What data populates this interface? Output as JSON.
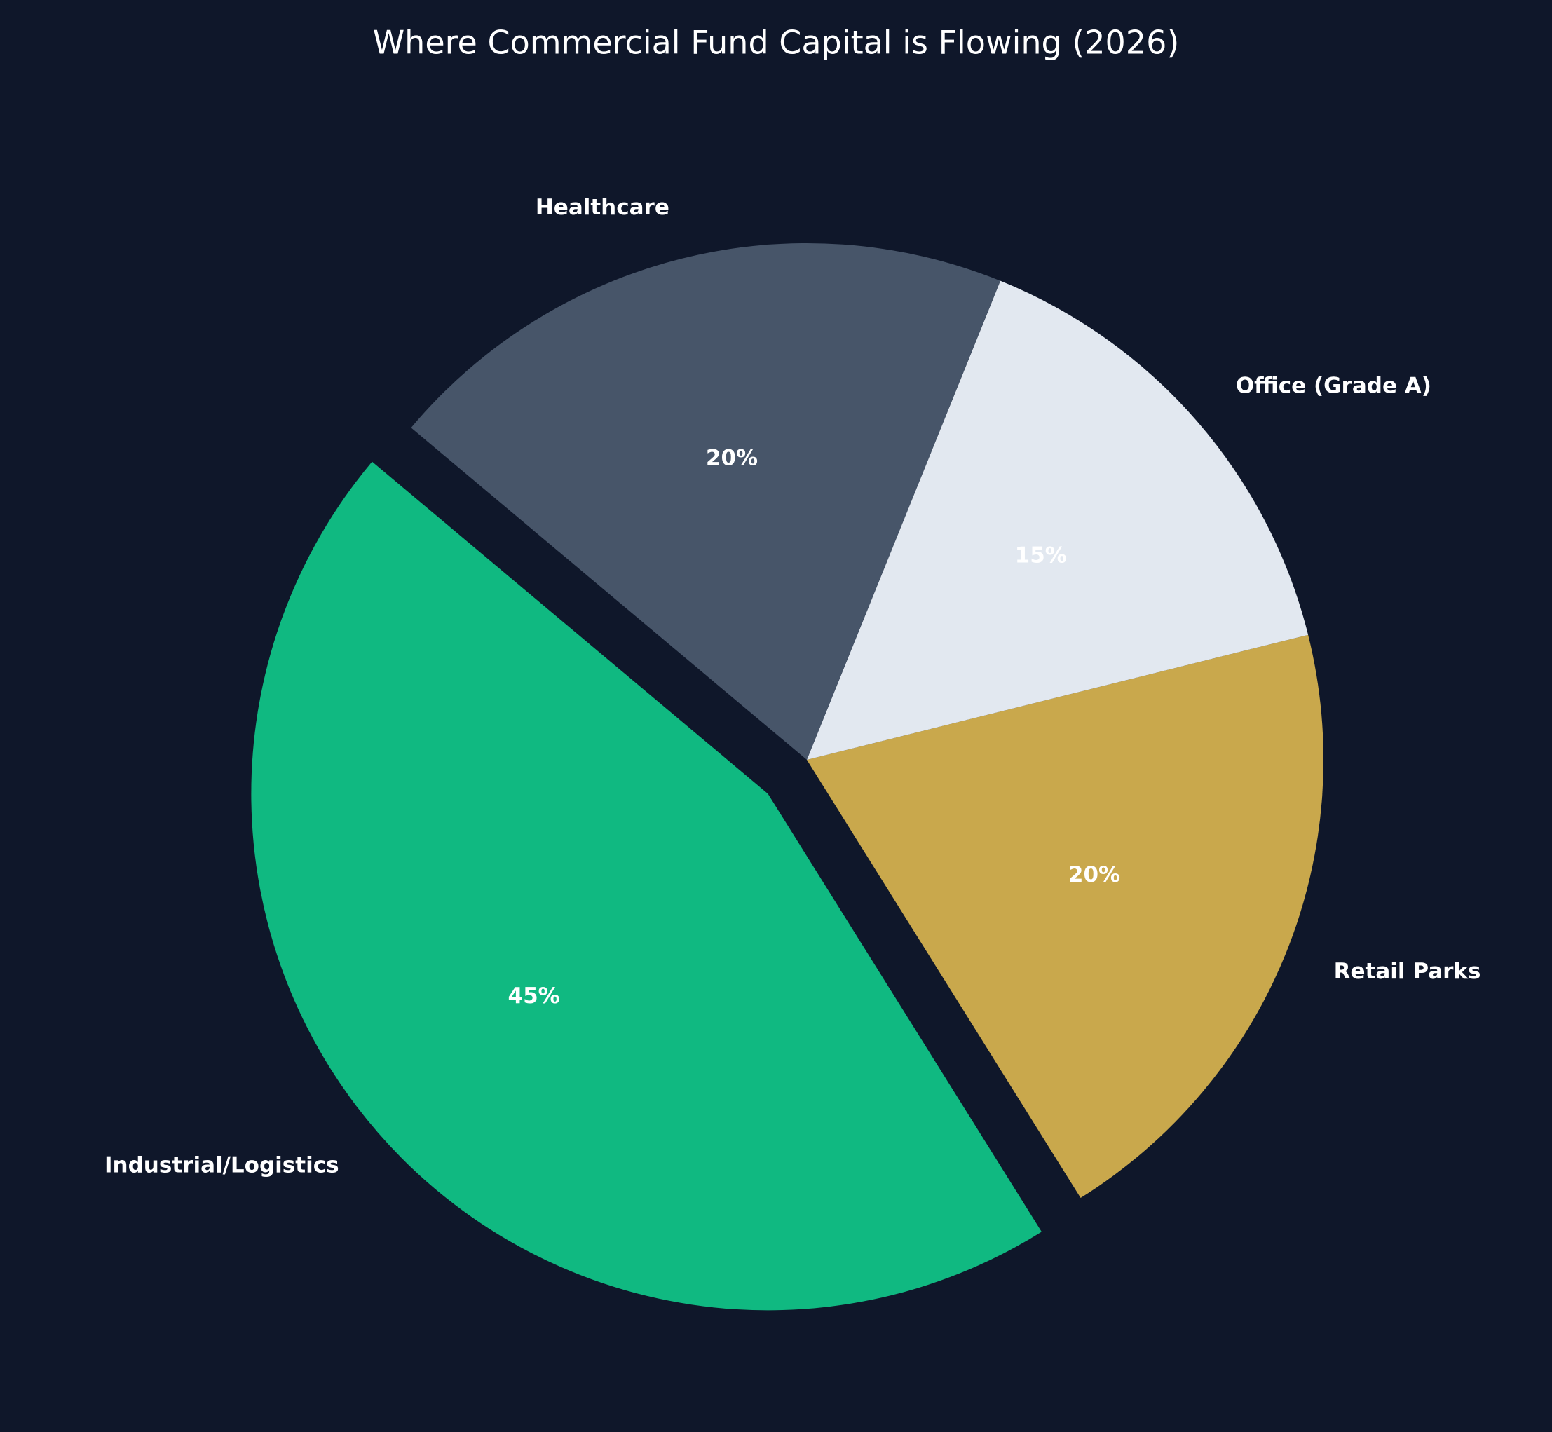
{
  "chart_data": {
    "type": "pie",
    "title": "Where Commercial Fund Capital is Flowing (2026)",
    "categories": [
      "Industrial/Logistics",
      "Retail Parks",
      "Office (Grade A)",
      "Healthcare"
    ],
    "values": [
      45,
      20,
      15,
      20
    ],
    "value_labels": [
      "45%",
      "20%",
      "15%",
      "20%"
    ],
    "colors": [
      "#10b981",
      "#c9a84c",
      "#e2e8f0",
      "#475569"
    ],
    "explode": [
      0.1,
      0,
      0,
      0
    ],
    "startangle": 140
  }
}
